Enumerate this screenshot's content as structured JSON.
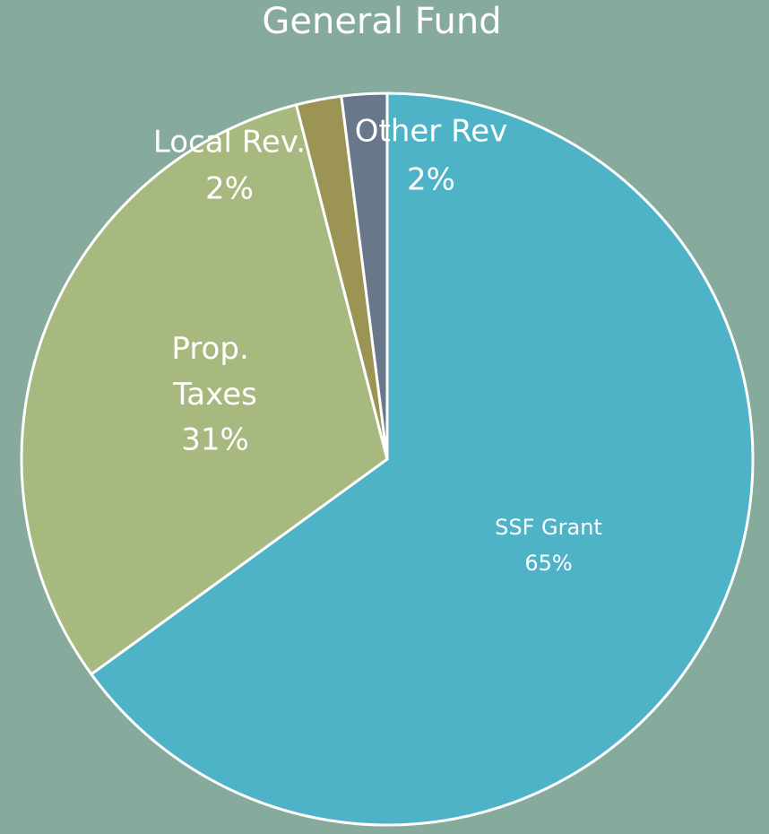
{
  "chart_data": {
    "type": "pie",
    "title": "General Fund",
    "categories": [
      "SSF Grant",
      "Prop. Taxes",
      "Local Rev.",
      "Other Rev"
    ],
    "values": [
      65,
      31,
      2,
      2
    ],
    "value_labels": [
      "65%",
      "31%",
      "2%",
      "2%"
    ],
    "colors": [
      "#4fb3c8",
      "#a8b97f",
      "#9b9455",
      "#68788a"
    ]
  }
}
